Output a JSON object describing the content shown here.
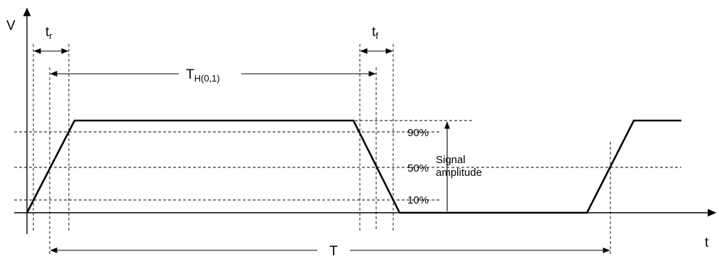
{
  "diagram": {
    "axis_labels": {
      "y": "V",
      "x": "t"
    },
    "levels": {
      "p90": "90%",
      "p50": "50%",
      "p10": "10%"
    },
    "amplitude_label": {
      "line1": "Signal",
      "line2": "amplitude"
    },
    "timing": {
      "rise": {
        "main": "t",
        "sub": "r"
      },
      "fall": {
        "main": "t",
        "sub": "f"
      },
      "high": {
        "main": "T",
        "sub": "H(0,1)"
      },
      "period": {
        "main": "T"
      }
    }
  }
}
